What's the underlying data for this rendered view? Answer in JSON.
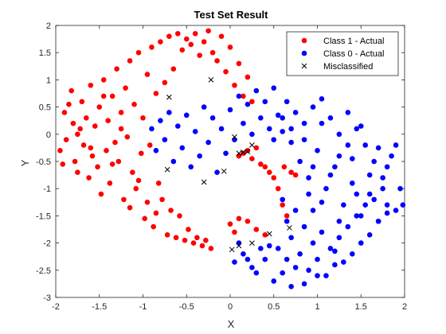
{
  "chart_data": {
    "type": "scatter",
    "title": "Test Set Result",
    "xlabel": "X",
    "ylabel": "Y",
    "xlim": [
      -2,
      2
    ],
    "ylim": [
      -3,
      2
    ],
    "xticks": [
      "-2",
      "-1.5",
      "-1",
      "-0.5",
      "0",
      "0.5",
      "1",
      "1.5",
      "2"
    ],
    "yticks": [
      "2",
      "1.5",
      "1",
      "0.5",
      "0",
      "-0.5",
      "-1",
      "-1.5",
      "-2",
      "-2.5",
      "-3"
    ],
    "grid": false,
    "legend_position": "top-right",
    "series": [
      {
        "name": "Class 1 - Actual",
        "marker": "filled-circle",
        "color": "#ff0000",
        "points": [
          [
            -1.95,
            -0.3
          ],
          [
            -1.9,
            0.4
          ],
          [
            -1.88,
            -0.1
          ],
          [
            -1.85,
            0.55
          ],
          [
            -1.82,
            0.8
          ],
          [
            -1.8,
            0.2
          ],
          [
            -1.78,
            -0.5
          ],
          [
            -1.75,
            -0.7
          ],
          [
            -1.72,
            0.1
          ],
          [
            -1.7,
            0.6
          ],
          [
            -1.68,
            -0.2
          ],
          [
            -1.65,
            0.3
          ],
          [
            -1.62,
            -0.8
          ],
          [
            -1.6,
            0.9
          ],
          [
            -1.58,
            -0.4
          ],
          [
            -1.55,
            0.15
          ],
          [
            -1.52,
            -0.6
          ],
          [
            -1.5,
            0.5
          ],
          [
            -1.48,
            -1.1
          ],
          [
            -1.45,
            1.0
          ],
          [
            -1.42,
            -0.3
          ],
          [
            -1.4,
            0.25
          ],
          [
            -1.38,
            -0.9
          ],
          [
            -1.35,
            0.7
          ],
          [
            -1.32,
            -0.15
          ],
          [
            -1.3,
            1.2
          ],
          [
            -1.28,
            -0.5
          ],
          [
            -1.25,
            0.4
          ],
          [
            -1.22,
            -1.2
          ],
          [
            -1.2,
            0.85
          ],
          [
            -1.18,
            -0.05
          ],
          [
            -1.15,
            1.35
          ],
          [
            -1.12,
            -0.7
          ],
          [
            -1.1,
            0.55
          ],
          [
            -1.08,
            -1.0
          ],
          [
            -1.05,
            1.5
          ],
          [
            -1.02,
            -0.35
          ],
          [
            -1.0,
            0.3
          ],
          [
            -0.98,
            -1.55
          ],
          [
            -0.95,
            1.1
          ],
          [
            -0.92,
            -0.2
          ],
          [
            -0.9,
            1.6
          ],
          [
            -0.88,
            -1.7
          ],
          [
            -0.85,
            0.75
          ],
          [
            -0.82,
            -0.9
          ],
          [
            -0.8,
            1.7
          ],
          [
            -0.78,
            -1.2
          ],
          [
            -0.75,
            0.95
          ],
          [
            -0.72,
            -1.85
          ],
          [
            -0.7,
            1.8
          ],
          [
            -0.68,
            -1.4
          ],
          [
            -0.65,
            1.2
          ],
          [
            -0.62,
            -1.9
          ],
          [
            -0.6,
            1.85
          ],
          [
            -0.58,
            -1.5
          ],
          [
            -0.55,
            1.55
          ],
          [
            -0.52,
            -1.95
          ],
          [
            -0.5,
            1.75
          ],
          [
            -0.48,
            -1.75
          ],
          [
            -0.45,
            1.65
          ],
          [
            -0.42,
            -2.0
          ],
          [
            -0.4,
            1.85
          ],
          [
            -0.38,
            -1.9
          ],
          [
            -0.35,
            1.45
          ],
          [
            -0.32,
            -2.05
          ],
          [
            -0.3,
            1.7
          ],
          [
            -0.28,
            -1.95
          ],
          [
            -0.25,
            1.9
          ],
          [
            -0.22,
            -2.1
          ],
          [
            -0.2,
            1.5
          ],
          [
            -0.15,
            1.35
          ],
          [
            -0.1,
            1.8
          ],
          [
            -0.05,
            1.15
          ],
          [
            0.0,
            1.6
          ],
          [
            0.05,
            0.9
          ],
          [
            0.1,
            1.3
          ],
          [
            0.15,
            0.7
          ],
          [
            0.2,
            1.05
          ],
          [
            0.25,
            0.6
          ],
          [
            0.1,
            -0.4
          ],
          [
            0.15,
            -0.35
          ],
          [
            0.2,
            -0.3
          ],
          [
            0.25,
            -0.45
          ],
          [
            0.3,
            -0.25
          ],
          [
            0.35,
            -0.55
          ],
          [
            0.4,
            -0.6
          ],
          [
            0.45,
            -0.7
          ],
          [
            0.5,
            -0.8
          ],
          [
            0.55,
            -1.0
          ],
          [
            0.6,
            -1.3
          ],
          [
            0.62,
            -0.6
          ],
          [
            0.65,
            -1.5
          ],
          [
            0.7,
            -0.7
          ],
          [
            0.75,
            -0.75
          ],
          [
            0.0,
            -1.65
          ],
          [
            0.05,
            -1.8
          ],
          [
            0.1,
            -1.55
          ],
          [
            0.2,
            -1.6
          ],
          [
            0.3,
            -1.75
          ],
          [
            0.4,
            -1.85
          ],
          [
            -1.92,
            -0.55
          ],
          [
            -1.6,
            -0.25
          ],
          [
            -1.35,
            -0.55
          ],
          [
            -1.15,
            -1.35
          ],
          [
            -1.45,
            0.7
          ],
          [
            -1.25,
            0.1
          ],
          [
            -0.95,
            -1.25
          ],
          [
            -0.85,
            -1.45
          ],
          [
            -1.05,
            -0.85
          ],
          [
            -1.75,
            0.0
          ]
        ]
      },
      {
        "name": "Class 0 - Actual",
        "marker": "filled-circle",
        "color": "#0000ff",
        "points": [
          [
            -0.9,
            0.1
          ],
          [
            -0.85,
            -0.3
          ],
          [
            -0.8,
            0.25
          ],
          [
            -0.75,
            -0.1
          ],
          [
            -0.7,
            0.4
          ],
          [
            -0.65,
            -0.5
          ],
          [
            -0.6,
            0.15
          ],
          [
            -0.55,
            -0.25
          ],
          [
            -0.5,
            0.35
          ],
          [
            -0.45,
            -0.6
          ],
          [
            -0.4,
            0.05
          ],
          [
            -0.35,
            -0.4
          ],
          [
            -0.3,
            0.5
          ],
          [
            -0.25,
            -0.15
          ],
          [
            -0.2,
            0.3
          ],
          [
            -0.15,
            -0.7
          ],
          [
            -0.1,
            0.1
          ],
          [
            -0.05,
            -0.35
          ],
          [
            0.0,
            0.45
          ],
          [
            0.05,
            -0.1
          ],
          [
            0.1,
            0.7
          ],
          [
            0.15,
            0.2
          ],
          [
            0.2,
            0.55
          ],
          [
            0.25,
            0.0
          ],
          [
            0.3,
            0.8
          ],
          [
            0.35,
            0.3
          ],
          [
            0.4,
            0.6
          ],
          [
            0.45,
            0.1
          ],
          [
            0.5,
            0.85
          ],
          [
            0.55,
            0.35
          ],
          [
            0.6,
            0.05
          ],
          [
            0.65,
            0.6
          ],
          [
            0.7,
            -0.15
          ],
          [
            0.75,
            0.4
          ],
          [
            0.8,
            -0.5
          ],
          [
            0.85,
            0.2
          ],
          [
            0.9,
            -0.8
          ],
          [
            0.95,
            0.5
          ],
          [
            1.0,
            -0.3
          ],
          [
            1.05,
            0.65
          ],
          [
            1.1,
            -1.0
          ],
          [
            1.15,
            0.3
          ],
          [
            1.2,
            -0.6
          ],
          [
            1.25,
            0.0
          ],
          [
            1.3,
            -1.3
          ],
          [
            1.35,
            0.4
          ],
          [
            1.4,
            -0.9
          ],
          [
            1.45,
            0.1
          ],
          [
            1.5,
            -1.5
          ],
          [
            1.55,
            -0.2
          ],
          [
            1.6,
            -1.1
          ],
          [
            1.65,
            -0.5
          ],
          [
            1.7,
            -1.6
          ],
          [
            1.75,
            -0.8
          ],
          [
            1.8,
            -1.3
          ],
          [
            1.85,
            -0.4
          ],
          [
            1.9,
            -1.4
          ],
          [
            1.95,
            -1.0
          ],
          [
            1.98,
            -1.3
          ],
          [
            0.6,
            -1.2
          ],
          [
            0.65,
            -1.6
          ],
          [
            0.7,
            -1.9
          ],
          [
            0.75,
            -1.4
          ],
          [
            0.8,
            -2.2
          ],
          [
            0.85,
            -1.7
          ],
          [
            0.9,
            -2.5
          ],
          [
            0.95,
            -2.0
          ],
          [
            1.0,
            -2.3
          ],
          [
            1.05,
            -1.8
          ],
          [
            1.1,
            -2.6
          ],
          [
            1.15,
            -2.1
          ],
          [
            1.2,
            -2.4
          ],
          [
            1.25,
            -1.9
          ],
          [
            1.3,
            -2.35
          ],
          [
            1.35,
            -1.7
          ],
          [
            1.4,
            -2.2
          ],
          [
            1.45,
            -1.5
          ],
          [
            1.5,
            -2.0
          ],
          [
            1.55,
            -1.3
          ],
          [
            1.6,
            -1.85
          ],
          [
            1.65,
            -1.2
          ],
          [
            1.7,
            -1.6
          ],
          [
            1.75,
            -1.0
          ],
          [
            1.8,
            -1.45
          ],
          [
            0.1,
            -2.0
          ],
          [
            0.2,
            -2.3
          ],
          [
            0.3,
            -2.55
          ],
          [
            0.4,
            -2.3
          ],
          [
            0.5,
            -2.7
          ],
          [
            0.55,
            -2.1
          ],
          [
            0.6,
            -2.55
          ],
          [
            0.65,
            -2.3
          ],
          [
            0.7,
            -2.8
          ],
          [
            0.75,
            -2.45
          ],
          [
            0.45,
            -2.05
          ],
          [
            0.35,
            -2.1
          ],
          [
            0.25,
            -2.45
          ],
          [
            0.15,
            -2.2
          ],
          [
            0.85,
            -2.75
          ],
          [
            1.0,
            -2.6
          ],
          [
            1.2,
            -2.15
          ],
          [
            0.05,
            -2.35
          ],
          [
            0.5,
            -0.1
          ],
          [
            0.6,
            0.3
          ],
          [
            0.7,
            0.1
          ],
          [
            0.85,
            -0.1
          ],
          [
            0.95,
            -0.6
          ],
          [
            1.05,
            0.2
          ],
          [
            1.25,
            -0.4
          ],
          [
            1.35,
            -0.2
          ],
          [
            1.5,
            0.15
          ],
          [
            1.6,
            -0.75
          ],
          [
            1.7,
            -0.25
          ],
          [
            1.8,
            -0.6
          ],
          [
            1.9,
            -0.2
          ],
          [
            1.4,
            -0.45
          ],
          [
            1.15,
            -0.75
          ],
          [
            1.05,
            -1.25
          ],
          [
            0.9,
            -1.1
          ],
          [
            0.95,
            -1.4
          ],
          [
            1.25,
            -1.6
          ],
          [
            1.45,
            -1.1
          ]
        ]
      },
      {
        "name": "Misclassified",
        "marker": "x",
        "color": "#000000",
        "points": [
          [
            -0.7,
            0.68
          ],
          [
            -0.22,
            1.0
          ],
          [
            0.05,
            -0.05
          ],
          [
            0.1,
            -0.35
          ],
          [
            0.15,
            -0.33
          ],
          [
            0.2,
            -0.32
          ],
          [
            0.25,
            -0.2
          ],
          [
            -0.07,
            -0.68
          ],
          [
            -0.3,
            -0.88
          ],
          [
            -0.72,
            -0.65
          ],
          [
            0.45,
            -1.83
          ],
          [
            0.68,
            -1.72
          ],
          [
            0.1,
            -2.05
          ],
          [
            0.25,
            -2.0
          ],
          [
            0.02,
            -2.12
          ]
        ]
      }
    ]
  }
}
